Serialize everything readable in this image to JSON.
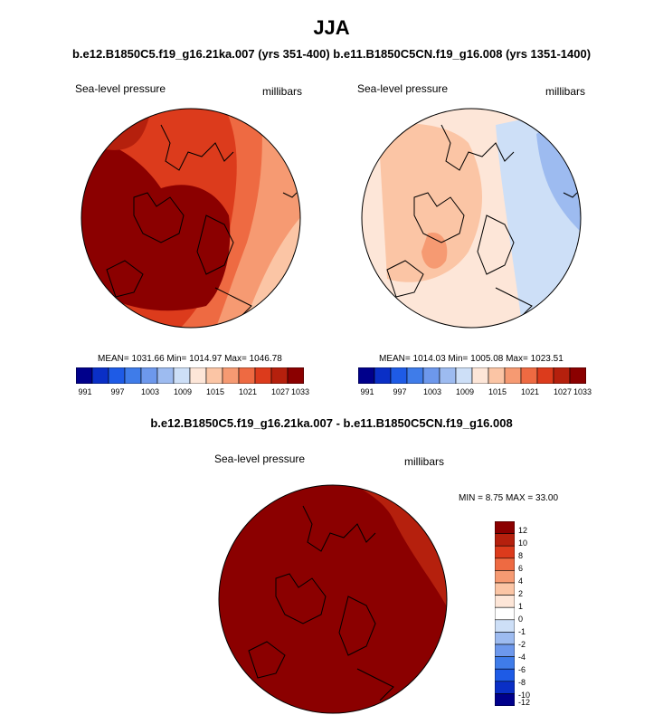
{
  "title": "JJA",
  "subtitle": "b.e12.B1850C5.f19_g16.21ka.007 (yrs 351-400) b.e11.B1850C5CN.f19_g16.008 (yrs 1351-1400)",
  "colors": {
    "scale_1": [
      "#00008b",
      "#0a2fc6",
      "#1e5be6",
      "#3f7ce9",
      "#6d98ec",
      "#9dbbf0",
      "#cddff7",
      "#fde6d8",
      "#fbc5a5",
      "#f69a72",
      "#ee6a42",
      "#dc3b1c",
      "#b5200d",
      "#8b0000"
    ],
    "scale_diff": [
      "#00008b",
      "#0a2fc6",
      "#1e5be6",
      "#3f7ce9",
      "#6d98ec",
      "#9dbbf0",
      "#cddff7",
      "#ffffff",
      "#fde6d8",
      "#fbc5a5",
      "#f69a72",
      "#ee6a42",
      "#dc3b1c",
      "#b5200d",
      "#8b0000"
    ]
  },
  "panels": [
    {
      "variable": "Sea-level pressure",
      "units": "millibars",
      "stats": "MEAN= 1031.66  Min= 1014.97  Max= 1046.78",
      "colorbar_ticks": [
        "991",
        "997",
        "1003",
        "1009",
        "1015",
        "1021",
        "1027",
        "1033"
      ]
    },
    {
      "variable": "Sea-level pressure",
      "units": "millibars",
      "stats": "MEAN= 1014.03  Min= 1005.08  Max= 1023.51",
      "colorbar_ticks": [
        "991",
        "997",
        "1003",
        "1009",
        "1015",
        "1021",
        "1027",
        "1033"
      ]
    }
  ],
  "difference": {
    "title": "b.e12.B1850C5.f19_g16.21ka.007 - b.e11.B1850C5CN.f19_g16.008",
    "variable": "Sea-level pressure",
    "units": "millibars",
    "stats": "MIN =  8.75 MAX =  33.00",
    "colorbar_ticks": [
      "12",
      "10",
      "8",
      "6",
      "4",
      "2",
      "1",
      "0",
      "-1",
      "-2",
      "-4",
      "-6",
      "-8",
      "-10",
      "-12"
    ]
  }
}
